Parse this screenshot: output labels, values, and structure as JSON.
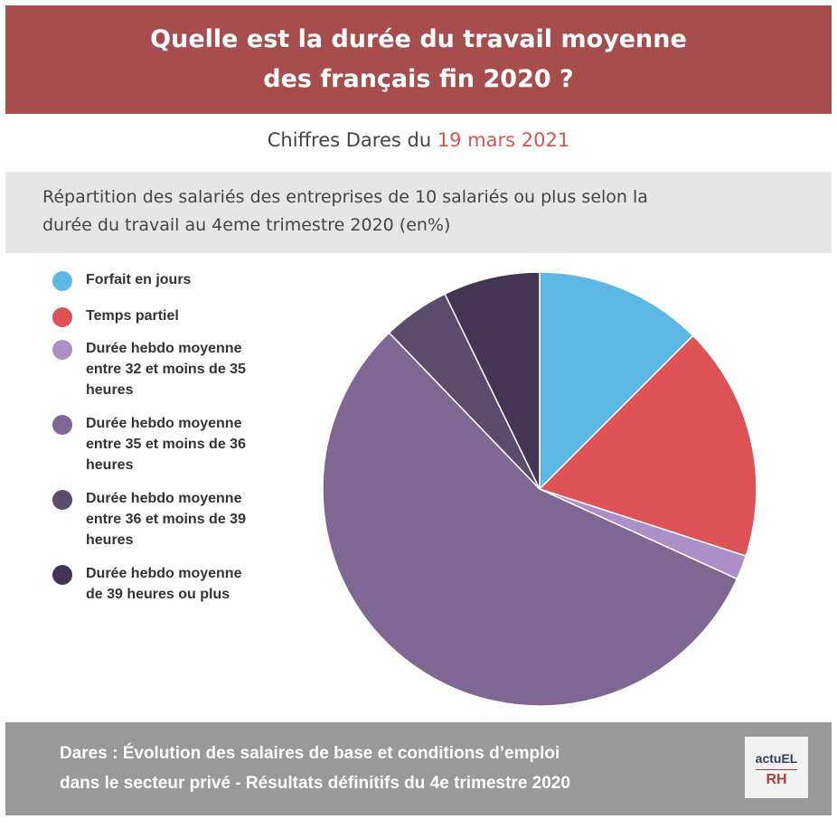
{
  "header": {
    "title_line1": "Quelle est la durée du travail moyenne",
    "title_line2": "des français fin 2020 ?"
  },
  "subtitle": {
    "prefix": "Chiffres Dares du ",
    "date": "19 mars 2021"
  },
  "description": {
    "line1": "Répartition des salariés des entreprises de 10 salariés ou plus selon la",
    "line2": "durée du travail au 4eme trimestre 2020 (en%)"
  },
  "chart_data": {
    "type": "pie",
    "title": "",
    "slices": [
      {
        "label": "Forfait en jours",
        "value": 12.5,
        "color": "#5db7e3"
      },
      {
        "label": "Temps partiel",
        "value": 17.5,
        "color": "#dc5256"
      },
      {
        "label": "Durée hebdo moyenne entre 32 et moins de 35 heures",
        "value": 1.8,
        "color": "#ad8fc7"
      },
      {
        "label": "Durée hebdo moyenne entre 35 et moins de 36 heures",
        "value": 56.0,
        "color": "#7e6893"
      },
      {
        "label": "Durée hebdo moyenne entre 36 et moins de 39 heures",
        "value": 5.0,
        "color": "#5b4b6c"
      },
      {
        "label": "Durée hebdo moyenne de 39 heures ou plus",
        "value": 7.2,
        "color": "#433553"
      }
    ],
    "legend_position": "left"
  },
  "legend": {
    "items": [
      {
        "lines": [
          "Forfait en jours"
        ]
      },
      {
        "lines": [
          "Temps partiel"
        ]
      },
      {
        "lines": [
          "Durée hebdo moyenne",
          "entre 32 et moins de 35",
          "heures"
        ]
      },
      {
        "lines": [
          "Durée hebdo moyenne",
          "entre 35 et moins de 36",
          "heures"
        ]
      },
      {
        "lines": [
          "Durée hebdo moyenne",
          "entre 36 et moins de 39",
          "heures"
        ]
      },
      {
        "lines": [
          "Durée hebdo moyenne",
          "de 39 heures ou plus"
        ]
      }
    ]
  },
  "footer": {
    "line1": "Dares : Évolution des salaires de base et conditions d’emploi",
    "line2": "dans le secteur privé - Résultats définitifs du 4e trimestre 2020",
    "logo_top": "actuEL",
    "logo_bottom": "RH"
  }
}
